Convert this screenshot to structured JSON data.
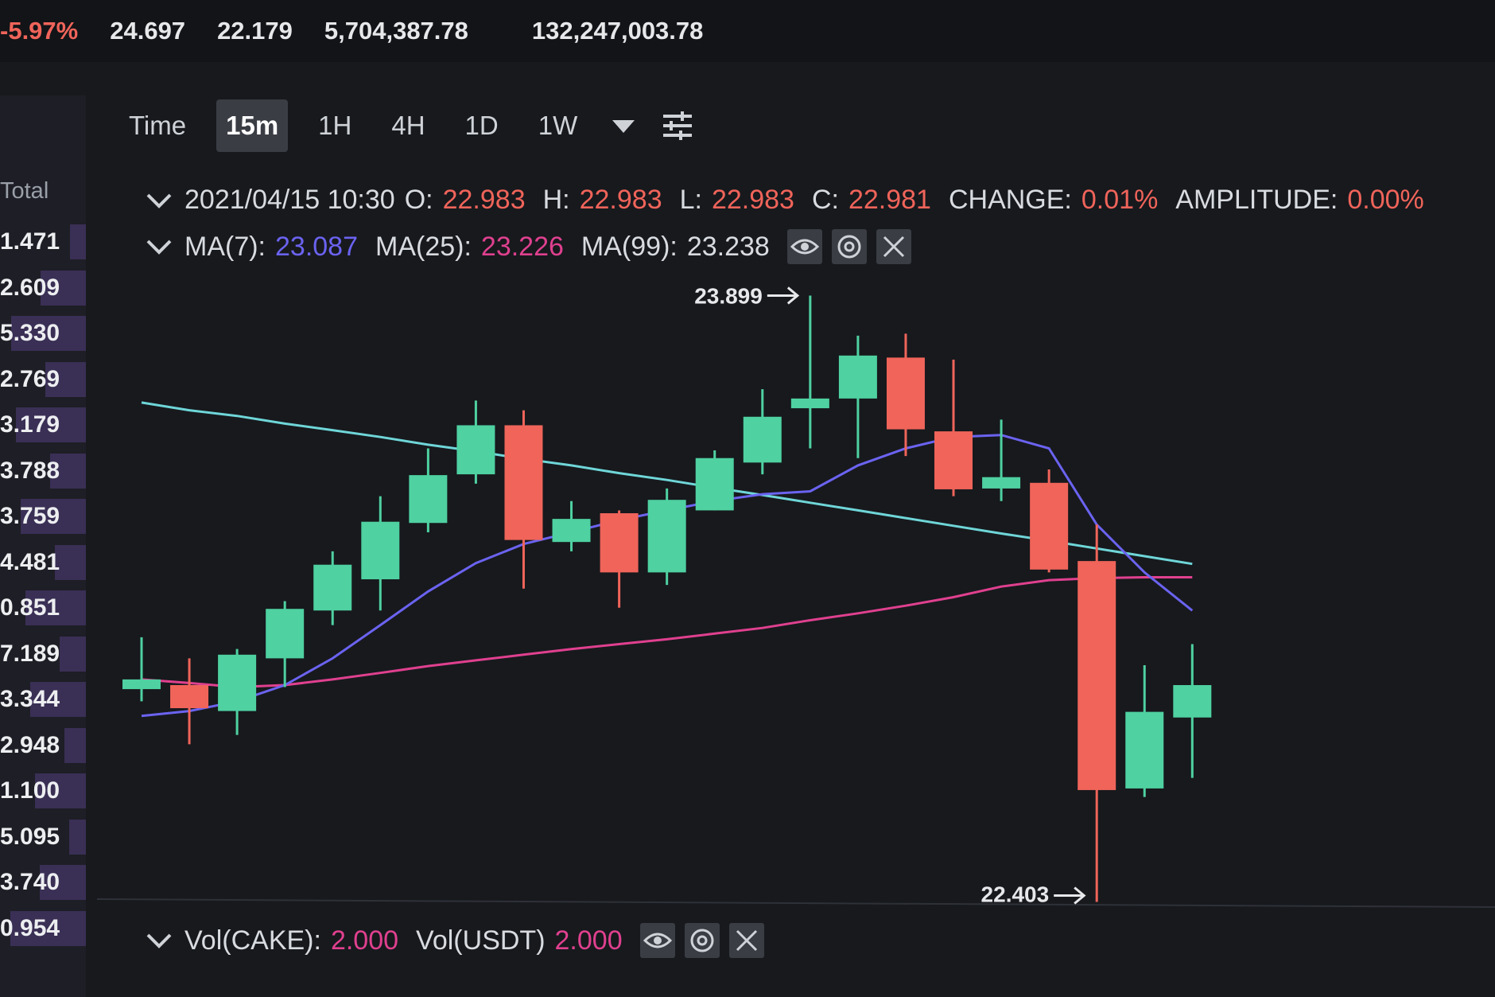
{
  "ticker": [
    "-5.97%",
    "24.697",
    "22.179",
    "5,704,387.78",
    "132,247,003.78"
  ],
  "sidebar": {
    "header": "Total",
    "values": [
      "1.471",
      "2.609",
      "5.330",
      "2.769",
      "3.179",
      "3.788",
      "3.759",
      "4.481",
      "0.851",
      "7.189",
      "3.344",
      "2.948",
      "1.100",
      "5.095",
      "3.740",
      "0.954"
    ]
  },
  "toolbar": {
    "intervals": [
      "Time",
      "15m",
      "1H",
      "4H",
      "1D",
      "1W"
    ]
  },
  "info": {
    "date": "2021/04/15 10:30",
    "fields": [
      {
        "label": "O:",
        "value": "22.983"
      },
      {
        "label": "H:",
        "value": "22.983"
      },
      {
        "label": "L:",
        "value": "22.983"
      },
      {
        "label": "C:",
        "value": "22.981"
      },
      {
        "label": "CHANGE:",
        "value": "0.01%"
      },
      {
        "label": "AMPLITUDE:",
        "value": "0.00%"
      }
    ]
  },
  "chart_data": {
    "type": "candlestick",
    "open": [
      22.928,
      22.938,
      22.874,
      23.004,
      23.122,
      23.199,
      23.338,
      23.458,
      23.579,
      23.291,
      23.362,
      23.216,
      23.369,
      23.487,
      23.621,
      23.645,
      23.746,
      23.564,
      23.423,
      23.437,
      23.244,
      22.683,
      22.858
    ],
    "high": [
      23.056,
      23.004,
      23.027,
      23.145,
      23.268,
      23.404,
      23.522,
      23.64,
      23.616,
      23.392,
      23.369,
      23.423,
      23.517,
      23.668,
      23.899,
      23.8,
      23.805,
      23.741,
      23.593,
      23.47,
      23.334,
      22.987,
      23.039
    ],
    "low": [
      22.898,
      22.792,
      22.815,
      22.933,
      23.086,
      23.122,
      23.315,
      23.435,
      23.176,
      23.268,
      23.129,
      23.185,
      23.369,
      23.458,
      23.522,
      23.498,
      23.503,
      23.404,
      23.392,
      23.216,
      22.403,
      22.662,
      22.709
    ],
    "close": [
      22.952,
      22.881,
      23.013,
      23.126,
      23.235,
      23.341,
      23.456,
      23.579,
      23.296,
      23.348,
      23.216,
      23.395,
      23.498,
      23.6,
      23.645,
      23.751,
      23.569,
      23.421,
      23.451,
      23.223,
      22.679,
      22.872,
      22.938
    ],
    "up_color": "#4fd1a1",
    "down_color": "#f0645a",
    "ylim": [
      22.3,
      24.0
    ],
    "high_label": 23.899,
    "low_label": 22.403,
    "series": [
      {
        "name": "MA(7):",
        "value_label": "23.087",
        "color": "#6b63f0",
        "values": [
          22.862,
          22.874,
          22.898,
          22.938,
          23.004,
          23.086,
          23.169,
          23.239,
          23.286,
          23.315,
          23.345,
          23.369,
          23.392,
          23.409,
          23.416,
          23.48,
          23.522,
          23.55,
          23.555,
          23.522,
          23.334,
          23.216,
          23.122
        ]
      },
      {
        "name": "MA(25):",
        "value_label": "23.226",
        "color": "#e0408f",
        "values": [
          22.952,
          22.943,
          22.933,
          22.938,
          22.952,
          22.968,
          22.985,
          22.999,
          23.013,
          23.027,
          23.039,
          23.051,
          23.065,
          23.079,
          23.098,
          23.115,
          23.134,
          23.155,
          23.181,
          23.197,
          23.202,
          23.204,
          23.204
        ]
      },
      {
        "name": "MA(99):",
        "value_label": "23.238",
        "color": "#6fd6d8",
        "values": [
          23.635,
          23.616,
          23.602,
          23.583,
          23.567,
          23.55,
          23.531,
          23.515,
          23.496,
          23.48,
          23.461,
          23.444,
          23.425,
          23.407,
          23.388,
          23.369,
          23.35,
          23.331,
          23.312,
          23.294,
          23.275,
          23.256,
          23.237
        ]
      }
    ]
  },
  "volume": {
    "fields": [
      {
        "label": "Vol(CAKE):",
        "value": "2.000"
      },
      {
        "label": "Vol(USDT)",
        "value": "2.000"
      }
    ]
  }
}
